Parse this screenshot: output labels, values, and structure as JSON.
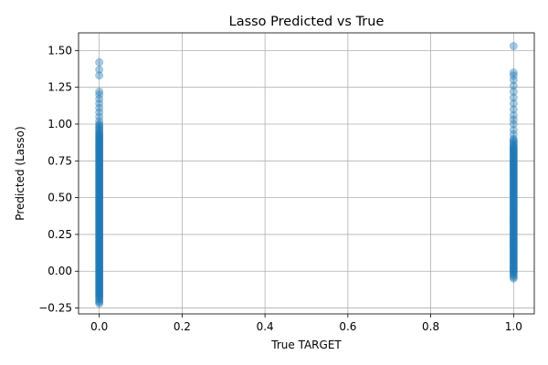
{
  "chart_data": {
    "type": "scatter",
    "title": "Lasso Predicted vs True",
    "xlabel": "True TARGET",
    "ylabel": "Predicted (Lasso)",
    "xlim": [
      -0.05,
      1.05
    ],
    "ylim": [
      -0.29,
      1.62
    ],
    "xticks": [
      0.0,
      0.2,
      0.4,
      0.6,
      0.8,
      1.0
    ],
    "xtick_labels": [
      "0.0",
      "0.2",
      "0.4",
      "0.6",
      "0.8",
      "1.0"
    ],
    "yticks": [
      -0.25,
      0.0,
      0.25,
      0.5,
      0.75,
      1.0,
      1.25,
      1.5
    ],
    "ytick_labels": [
      "−0.25",
      "0.00",
      "0.25",
      "0.50",
      "0.75",
      "1.00",
      "1.25",
      "1.50"
    ],
    "grid": true,
    "marker_color": "#1f77b4",
    "marker_alpha": 0.4,
    "series": [
      {
        "x_value": 0,
        "dense_range": [
          -0.22,
          1.0
        ],
        "sparse_points": [
          1.02,
          1.05,
          1.08,
          1.11,
          1.14,
          1.17,
          1.2,
          1.22,
          1.33,
          1.37,
          1.42
        ]
      },
      {
        "x_value": 1,
        "dense_range": [
          -0.05,
          0.9
        ],
        "sparse_points": [
          0.93,
          0.96,
          1.0,
          1.03,
          1.06,
          1.1,
          1.14,
          1.18,
          1.22,
          1.26,
          1.3,
          1.33,
          1.35,
          1.53
        ]
      }
    ]
  }
}
